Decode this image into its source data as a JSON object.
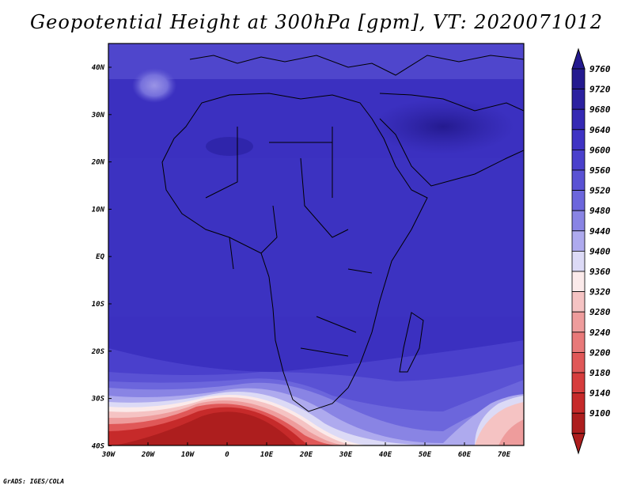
{
  "title": "Geopotential Height at 300hPa [gpm], VT: 2020071012",
  "credit": "GrADS: IGES/COLA",
  "map": {
    "region": "Africa and surrounding oceans",
    "lat_range": [
      "40S",
      "45N"
    ],
    "lon_range": [
      "30W",
      "75E"
    ],
    "lat_ticks": [
      "40N",
      "30N",
      "20N",
      "10N",
      "EQ",
      "10S",
      "20S",
      "30S",
      "40S"
    ],
    "lon_ticks": [
      "30W",
      "20W",
      "10W",
      "0",
      "10E",
      "20E",
      "30E",
      "40E",
      "50E",
      "60E",
      "70E"
    ],
    "features": [
      "coastlines",
      "country-borders"
    ]
  },
  "colorbar": {
    "levels": [
      "9760",
      "9720",
      "9680",
      "9640",
      "9600",
      "9560",
      "9520",
      "9480",
      "9440",
      "9400",
      "9360",
      "9320",
      "9280",
      "9240",
      "9200",
      "9180",
      "9140",
      "9100"
    ],
    "colors": [
      "#241a8f",
      "#2c21a0",
      "#3529b4",
      "#3f33c4",
      "#4a40cc",
      "#5a52d4",
      "#6c66dc",
      "#8984e4",
      "#aeaaee",
      "#dcdaf6",
      "#fbeaea",
      "#f5c3c3",
      "#ee9c9c",
      "#e87979",
      "#e05858",
      "#d63d3d",
      "#c62a2a",
      "#ad1e1e"
    ]
  }
}
